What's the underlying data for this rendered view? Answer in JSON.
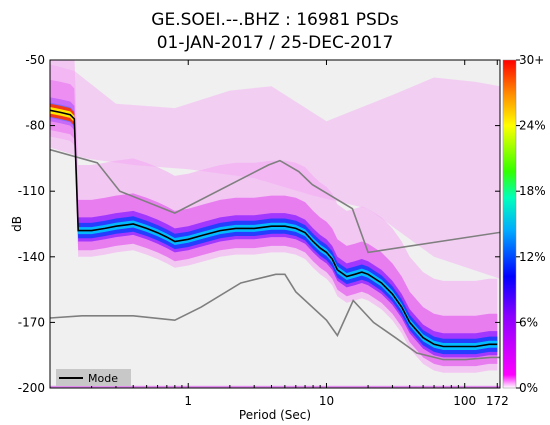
{
  "chart_data": {
    "type": "heatmap",
    "title_line1": "GE.SOEI.--.BHZ : 16981 PSDs",
    "title_line2": "01-JAN-2017 / 25-DEC-2017",
    "xlabel": "Period (Sec)",
    "ylabel": "dB",
    "x_scale": "log",
    "xlim": [
      0.1,
      180
    ],
    "ylim": [
      -200,
      -50
    ],
    "x_ticks": [
      {
        "value": 1,
        "label": "1"
      },
      {
        "value": 10,
        "label": "10"
      },
      {
        "value": 100,
        "label": "100"
      },
      {
        "value": 172,
        "label": "172"
      }
    ],
    "y_ticks": [
      {
        "value": -50,
        "label": "-50"
      },
      {
        "value": -80,
        "label": "-80"
      },
      {
        "value": -110,
        "label": "-110"
      },
      {
        "value": -140,
        "label": "-140"
      },
      {
        "value": -170,
        "label": "-170"
      },
      {
        "value": -200,
        "label": "-200"
      }
    ],
    "colorbar": {
      "ticks": [
        "0%",
        "6%",
        "12%",
        "18%",
        "24%",
        "30+"
      ],
      "range": [
        0,
        30
      ]
    },
    "legend": {
      "position": "bottom-left",
      "entries": [
        "Mode"
      ]
    },
    "mode_series": {
      "name": "Mode",
      "color": "#000000",
      "period": [
        0.1,
        0.12,
        0.14,
        0.15,
        0.16,
        0.18,
        0.2,
        0.25,
        0.3,
        0.4,
        0.5,
        0.6,
        0.7,
        0.8,
        1.0,
        1.3,
        1.7,
        2.2,
        3.0,
        4.0,
        5.0,
        6.0,
        7.0,
        8.0,
        9.0,
        10.0,
        11.0,
        12.0,
        14.0,
        16.0,
        18.0,
        20.0,
        25.0,
        30.0,
        35.0,
        40.0,
        50.0,
        60.0,
        70.0,
        80.0,
        100.0,
        120.0,
        150.0,
        172.0
      ],
      "db": [
        -73,
        -74,
        -75,
        -77,
        -128,
        -128,
        -128,
        -127,
        -126,
        -125,
        -127,
        -129,
        -131,
        -133,
        -132,
        -130,
        -128,
        -127,
        -127,
        -126,
        -126,
        -127,
        -129,
        -133,
        -136,
        -138,
        -141,
        -146,
        -149,
        -148,
        -147,
        -148,
        -152,
        -157,
        -163,
        -170,
        -177,
        -180,
        -181,
        -181,
        -181,
        -181,
        -180,
        -180
      ]
    },
    "nlnm_series": {
      "period": [
        0.1,
        0.17,
        0.4,
        0.8,
        1.24,
        2.4,
        4.3,
        5.0,
        6.0,
        10.0,
        12.0,
        15.6,
        21.9,
        31.6,
        45.0,
        70.0,
        101.0,
        154.0,
        180.0
      ],
      "db": [
        -168,
        -167,
        -167,
        -169,
        -163,
        -152,
        -148,
        -148,
        -156,
        -169,
        -176,
        -160,
        -170,
        -177,
        -184,
        -187,
        -187,
        -186,
        -186
      ]
    },
    "nhnm_series": {
      "period": [
        0.1,
        0.22,
        0.32,
        0.8,
        3.8,
        4.6,
        6.3,
        7.9,
        15.4,
        20.0,
        354.8
      ],
      "db": [
        -91,
        -97,
        -110,
        -120,
        -98,
        -96,
        -101,
        -107,
        -118,
        -138,
        -126
      ]
    },
    "colors": {
      "background": "#f0f0f0",
      "noise_models": "#7f7f7f",
      "mode": "#000000"
    }
  }
}
